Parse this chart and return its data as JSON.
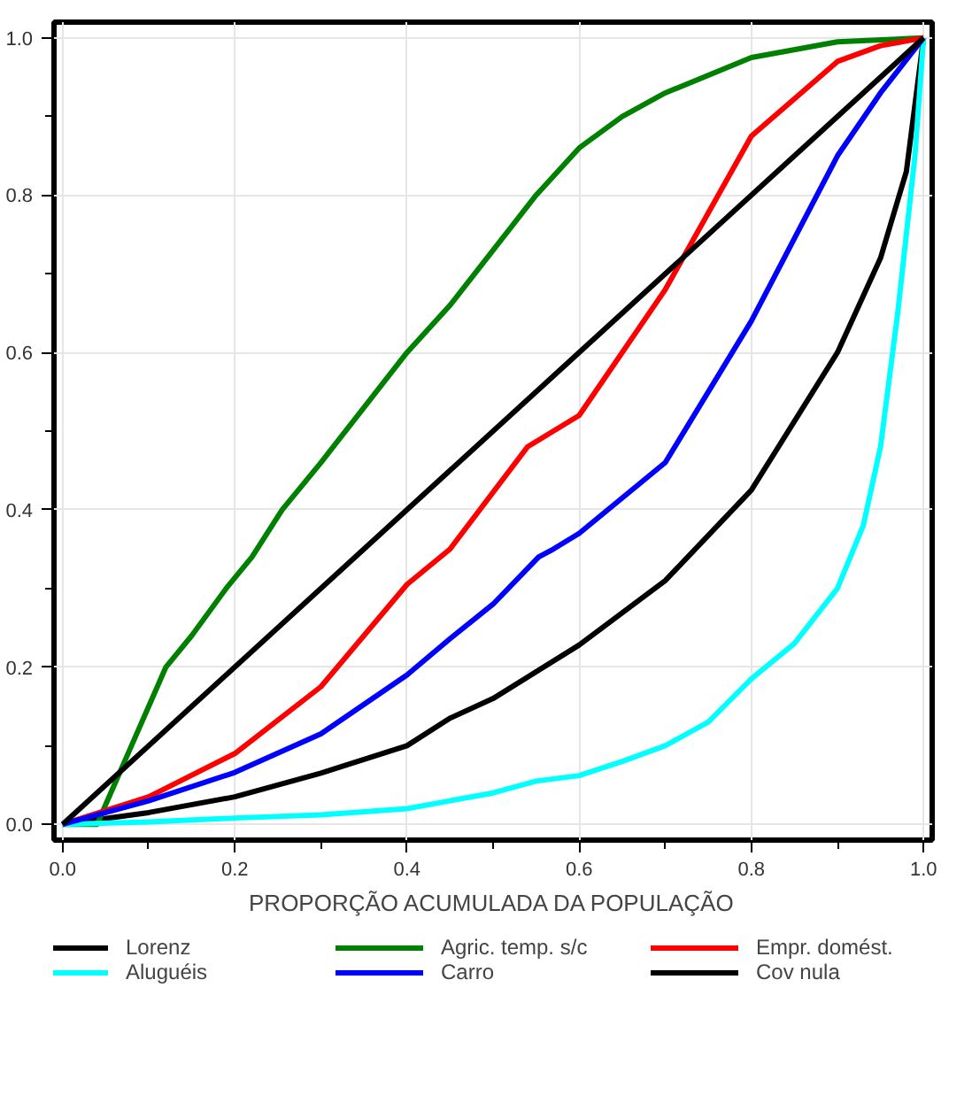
{
  "chart_data": {
    "type": "line",
    "xlabel": "PROPORÇÃO ACUMULADA DA POPULAÇÃO",
    "xlim": [
      -0.01,
      1.01
    ],
    "ylim": [
      -0.02,
      1.02
    ],
    "xticks": [
      {
        "value": 0,
        "label": "0.0"
      },
      {
        "value": 0.1,
        "label": null
      },
      0.2,
      {
        "value": 0.3,
        "label": null
      },
      0.4,
      {
        "value": 0.5,
        "label": null
      },
      0.6,
      {
        "value": 0.7,
        "label": null
      },
      0.8,
      {
        "value": 0.9,
        "label": null
      },
      {
        "value": 1,
        "label": "1.0"
      }
    ],
    "yticks": [
      {
        "value": 0,
        "label": "0.0"
      },
      {
        "value": 0.1,
        "label": null
      },
      0.2,
      {
        "value": 0.3,
        "label": null
      },
      0.4,
      {
        "value": 0.5,
        "label": null
      },
      0.6,
      {
        "value": 0.7,
        "label": null
      },
      0.8,
      {
        "value": 0.9,
        "label": null
      },
      {
        "value": 1,
        "label": "1.0"
      }
    ],
    "grid": true,
    "legend": "bottom",
    "marker": "none",
    "line_style": "solid",
    "series": [
      {
        "name": "Lorenz",
        "color": "#000000",
        "x": [
          0,
          0.1,
          0.2,
          0.3,
          0.4,
          0.45,
          0.5,
          0.6,
          0.7,
          0.8,
          0.9,
          0.95,
          0.98,
          1
        ],
        "values": [
          0,
          0.015,
          0.035,
          0.065,
          0.1,
          0.135,
          0.16,
          0.228,
          0.31,
          0.425,
          0.6,
          0.72,
          0.83,
          1
        ]
      },
      {
        "name": "Agric. temp. s/c",
        "color": "#008000",
        "x": [
          0,
          0.04,
          0.06,
          0.08,
          0.1,
          0.12,
          0.15,
          0.19,
          0.22,
          0.255,
          0.3,
          0.35,
          0.4,
          0.45,
          0.5,
          0.55,
          0.6,
          0.65,
          0.7,
          0.8,
          0.9,
          1
        ],
        "values": [
          0,
          0,
          0.05,
          0.1,
          0.15,
          0.2,
          0.24,
          0.3,
          0.34,
          0.4,
          0.46,
          0.53,
          0.6,
          0.66,
          0.73,
          0.8,
          0.86,
          0.9,
          0.93,
          0.975,
          0.995,
          1
        ]
      },
      {
        "name": "Empr. domést.",
        "color": "#ff0000",
        "x": [
          0,
          0.1,
          0.2,
          0.3,
          0.4,
          0.45,
          0.54,
          0.6,
          0.7,
          0.8,
          0.9,
          0.95,
          1
        ],
        "values": [
          0,
          0.035,
          0.09,
          0.175,
          0.305,
          0.35,
          0.48,
          0.52,
          0.68,
          0.875,
          0.97,
          0.99,
          1
        ]
      },
      {
        "name": "Aluguéis",
        "color": "#00ffff",
        "x": [
          0,
          0.1,
          0.2,
          0.3,
          0.4,
          0.45,
          0.5,
          0.55,
          0.6,
          0.65,
          0.7,
          0.75,
          0.8,
          0.85,
          0.9,
          0.93,
          0.95,
          0.97,
          0.98,
          0.99,
          1
        ],
        "values": [
          0,
          0.003,
          0.008,
          0.012,
          0.02,
          0.03,
          0.04,
          0.055,
          0.062,
          0.08,
          0.1,
          0.13,
          0.185,
          0.23,
          0.3,
          0.38,
          0.48,
          0.65,
          0.75,
          0.85,
          1
        ]
      },
      {
        "name": "Carro",
        "color": "#0000ff",
        "x": [
          0,
          0.1,
          0.2,
          0.3,
          0.4,
          0.45,
          0.5,
          0.553,
          0.57,
          0.6,
          0.7,
          0.8,
          0.9,
          0.95,
          1
        ],
        "values": [
          0,
          0.03,
          0.066,
          0.115,
          0.19,
          0.236,
          0.28,
          0.34,
          0.35,
          0.37,
          0.46,
          0.64,
          0.85,
          0.93,
          1
        ]
      },
      {
        "name": "Cov nula",
        "color": "#000000",
        "x": [
          0,
          1
        ],
        "values": [
          0,
          1
        ]
      }
    ]
  }
}
